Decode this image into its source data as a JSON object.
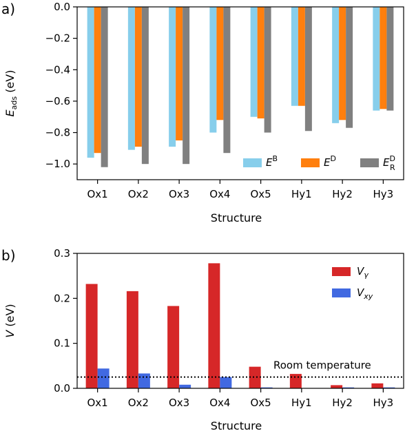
{
  "chart_data": [
    {
      "type": "bar",
      "panel_label": "a)",
      "categories": [
        "Ox1",
        "Ox2",
        "Ox3",
        "Ox4",
        "Ox5",
        "Hy1",
        "Hy2",
        "Hy3"
      ],
      "xlabel": "Structure",
      "ylabel": {
        "base": "E",
        "sub": "ads",
        "unit": " (eV)"
      },
      "ylim": [
        -1.1,
        0.0
      ],
      "yticks": [
        0.0,
        -0.2,
        -0.4,
        -0.6,
        -0.8,
        -1.0
      ],
      "ytick_labels": [
        "0.0",
        "−0.2",
        "−0.4",
        "−0.6",
        "−0.8",
        "−1.0"
      ],
      "legend_position": "bottom-right",
      "series": [
        {
          "name": "E",
          "sup": "B",
          "sub": "",
          "color": "#87ceeb",
          "values": [
            -0.96,
            -0.91,
            -0.89,
            -0.8,
            -0.7,
            -0.63,
            -0.74,
            -0.66
          ]
        },
        {
          "name": "E",
          "sup": "D",
          "sub": "",
          "color": "#ff7f0e",
          "values": [
            -0.93,
            -0.89,
            -0.85,
            -0.72,
            -0.71,
            -0.63,
            -0.72,
            -0.65
          ]
        },
        {
          "name": "E",
          "sup": "D",
          "sub": "R",
          "color": "#808080",
          "values": [
            -1.02,
            -1.0,
            -1.0,
            -0.93,
            -0.8,
            -0.79,
            -0.77,
            -0.66
          ]
        }
      ]
    },
    {
      "type": "bar",
      "panel_label": "b)",
      "categories": [
        "Ox1",
        "Ox2",
        "Ox3",
        "Ox4",
        "Ox5",
        "Hy1",
        "Hy2",
        "Hy3"
      ],
      "xlabel": "Structure",
      "ylabel": {
        "base": "V",
        "sub": "",
        "unit": " (eV)"
      },
      "ylim": [
        0.0,
        0.3
      ],
      "yticks": [
        0.0,
        0.1,
        0.2,
        0.3
      ],
      "ytick_labels": [
        "0.0",
        "0.1",
        "0.2",
        "0.3"
      ],
      "legend_position": "top-right",
      "series": [
        {
          "name": "V",
          "sub": "γ",
          "color": "#d62728",
          "values": [
            0.232,
            0.216,
            0.183,
            0.278,
            0.048,
            0.032,
            0.007,
            0.011
          ]
        },
        {
          "name": "V",
          "sub": "xy",
          "color": "#4169e1",
          "values": [
            0.044,
            0.033,
            0.008,
            0.025,
            0.002,
            0.0,
            0.002,
            0.002
          ]
        }
      ],
      "annotation": {
        "text": "Room temperature",
        "value": 0.025,
        "style": "dotted"
      }
    }
  ]
}
